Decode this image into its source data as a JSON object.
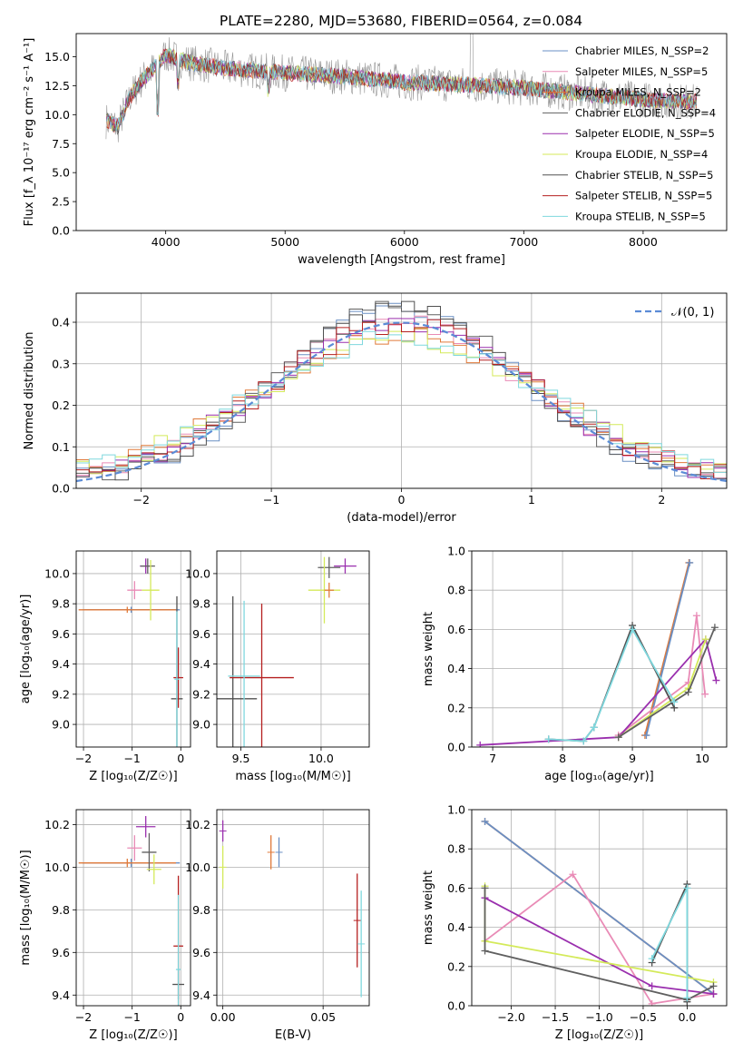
{
  "figure": {
    "title": "PLATE=2280, MJD=53680, FIBERID=0564, z=0.084"
  },
  "colors": {
    "chabrier_miles": "#6a8fc4",
    "salpeter_miles": "#e98bb6",
    "kroupa_miles": "#e07a3a",
    "chabrier_elodie": "#606060",
    "salpeter_elodie": "#9a2fae",
    "kroupa_elodie": "#d4ea5a",
    "chabrier_stelib": "#505050",
    "salpeter_stelib": "#b52020",
    "kroupa_stelib": "#7fd8de",
    "data": "#888888",
    "gaussian": "#5b8bd6"
  },
  "chart_data": [
    {
      "type": "line",
      "id": "spectrum",
      "title": "PLATE=2280, MJD=53680, FIBERID=0564, z=0.084",
      "xlabel": "wavelength [Angstrom, rest frame]",
      "ylabel": "Flux [f_λ 10⁻¹⁷ erg cm⁻² s⁻¹ A⁻¹]",
      "xlim": [
        3250,
        8700
      ],
      "ylim": [
        0,
        17
      ],
      "xticks": [
        4000,
        5000,
        6000,
        7000,
        8000
      ],
      "yticks": [
        0.0,
        2.5,
        5.0,
        7.5,
        10.0,
        12.5,
        15.0
      ],
      "grid": false,
      "legend": "top-right",
      "series": [
        {
          "name": "Chabrier MILES, N_SSP=2",
          "color": "chabrier_miles"
        },
        {
          "name": "Salpeter MILES, N_SSP=5",
          "color": "salpeter_miles"
        },
        {
          "name": "Kroupa MILES, N_SSP=2",
          "color": "kroupa_miles"
        },
        {
          "name": "Chabrier ELODIE, N_SSP=4",
          "color": "chabrier_elodie"
        },
        {
          "name": "Salpeter ELODIE, N_SSP=5",
          "color": "salpeter_elodie"
        },
        {
          "name": "Kroupa ELODIE, N_SSP=4",
          "color": "kroupa_elodie"
        },
        {
          "name": "Chabrier STELIB, N_SSP=5",
          "color": "chabrier_stelib"
        },
        {
          "name": "Salpeter STELIB, N_SSP=5",
          "color": "salpeter_stelib"
        },
        {
          "name": "Kroupa STELIB, N_SSP=5",
          "color": "kroupa_stelib"
        }
      ],
      "continuum": {
        "x": [
          3500,
          3600,
          3700,
          3800,
          3900,
          4000,
          4100,
          4200,
          4500,
          5000,
          5500,
          6000,
          6500,
          7000,
          7500,
          8000,
          8500
        ],
        "y": [
          9.5,
          9.0,
          11.5,
          13.0,
          14.0,
          15.2,
          14.8,
          14.5,
          14.0,
          13.6,
          13.3,
          12.8,
          12.6,
          12.3,
          11.8,
          11.3,
          11.1
        ]
      }
    },
    {
      "type": "line",
      "id": "residuals",
      "xlabel": "(data-model)/error",
      "ylabel": "Normed distribution",
      "xlim": [
        -2.5,
        2.5
      ],
      "ylim": [
        0,
        0.47
      ],
      "xticks": [
        -2,
        -1,
        0,
        1,
        2
      ],
      "yticks": [
        0.0,
        0.1,
        0.2,
        0.3,
        0.4
      ],
      "grid": true,
      "legend": "top-right",
      "gaussian_label": "𝒩(0, 1)",
      "bin_width": 0.1
    },
    {
      "type": "scatter",
      "id": "age_vs_Z",
      "xlabel": "Z [log₁₀(Z/Z☉)]",
      "ylabel": "age  [log₁₀(age/yr)]",
      "xlim": [
        -2.15,
        0.2
      ],
      "ylim": [
        8.85,
        10.15
      ],
      "xticks": [
        -2,
        -1,
        0
      ],
      "yticks": [
        9.0,
        9.2,
        9.4,
        9.6,
        9.8,
        10.0
      ],
      "grid": true,
      "points": [
        {
          "c": "chabrier_miles",
          "x": -1.02,
          "xerr": 1.0,
          "y": 9.76,
          "yerr": 0.02
        },
        {
          "c": "kroupa_miles",
          "x": -1.1,
          "xerr": 1.0,
          "y": 9.76,
          "yerr": 0.02
        },
        {
          "c": "salpeter_miles",
          "x": -0.95,
          "xerr": 0.15,
          "y": 9.89,
          "yerr": 0.06
        },
        {
          "c": "salpeter_elodie",
          "x": -0.72,
          "xerr": 0.12,
          "y": 10.05,
          "yerr": 0.05
        },
        {
          "c": "chabrier_elodie",
          "x": -0.68,
          "xerr": 0.15,
          "y": 10.05,
          "yerr": 0.05
        },
        {
          "c": "kroupa_elodie",
          "x": -0.62,
          "xerr": 0.18,
          "y": 9.89,
          "yerr": 0.2
        },
        {
          "c": "chabrier_stelib",
          "x": -0.08,
          "xerr": 0.12,
          "y": 9.17,
          "yerr": 0.68
        },
        {
          "c": "salpeter_stelib",
          "x": -0.05,
          "xerr": 0.1,
          "y": 9.31,
          "yerr": 0.2
        },
        {
          "c": "kroupa_stelib",
          "x": -0.08,
          "xerr": 0.05,
          "y": 9.3,
          "yerr": 0.45
        }
      ]
    },
    {
      "type": "scatter",
      "id": "age_vs_mass",
      "xlabel": "mass [log₁₀(M/M☉)]",
      "ylabel": "",
      "xlim": [
        9.35,
        10.3
      ],
      "ylim": [
        8.85,
        10.15
      ],
      "xticks": [
        9.5,
        10.0
      ],
      "yticks": [
        9.0,
        9.2,
        9.4,
        9.6,
        9.8,
        10.0
      ],
      "grid": true,
      "points": [
        {
          "c": "salpeter_elodie",
          "x": 10.15,
          "xerr": 0.07,
          "y": 10.05,
          "yerr": 0.05
        },
        {
          "c": "chabrier_elodie",
          "x": 10.05,
          "xerr": 0.07,
          "y": 10.04,
          "yerr": 0.07
        },
        {
          "c": "kroupa_elodie",
          "x": 10.02,
          "xerr": 0.1,
          "y": 9.89,
          "yerr": 0.22
        },
        {
          "c": "kroupa_miles",
          "x": 10.05,
          "xerr": 0.03,
          "y": 9.89,
          "yerr": 0.05
        },
        {
          "c": "chabrier_stelib",
          "x": 9.45,
          "xerr": 0.15,
          "y": 9.17,
          "yerr": 0.68
        },
        {
          "c": "salpeter_stelib",
          "x": 9.63,
          "xerr": 0.2,
          "y": 9.31,
          "yerr": 0.49
        },
        {
          "c": "kroupa_stelib",
          "x": 9.52,
          "xerr": 0.1,
          "y": 9.32,
          "yerr": 0.5
        }
      ]
    },
    {
      "type": "line",
      "id": "weight_vs_age",
      "xlabel": "age  [log₁₀(age/yr)]",
      "ylabel": "mass weight",
      "xlim": [
        6.7,
        10.35
      ],
      "ylim": [
        0,
        1.0
      ],
      "xticks": [
        7,
        8,
        9,
        10
      ],
      "yticks": [
        0.0,
        0.2,
        0.4,
        0.6,
        0.8,
        1.0
      ],
      "grid": true,
      "series": [
        {
          "c": "kroupa_miles",
          "x": [
            9.18,
            9.81
          ],
          "y": [
            0.06,
            0.94
          ]
        },
        {
          "c": "chabrier_miles",
          "x": [
            9.2,
            9.82
          ],
          "y": [
            0.06,
            0.94
          ]
        },
        {
          "c": "salpeter_miles",
          "x": [
            8.8,
            9.8,
            9.92,
            10.04
          ],
          "y": [
            0.06,
            0.33,
            0.67,
            0.27
          ]
        },
        {
          "c": "salpeter_elodie",
          "x": [
            6.82,
            8.8,
            10.05,
            10.2
          ],
          "y": [
            0.01,
            0.05,
            0.55,
            0.34
          ]
        },
        {
          "c": "kroupa_elodie",
          "x": [
            8.8,
            9.8,
            10.05
          ],
          "y": [
            0.05,
            0.3,
            0.55
          ]
        },
        {
          "c": "chabrier_elodie",
          "x": [
            8.8,
            9.8,
            10.18
          ],
          "y": [
            0.05,
            0.28,
            0.61
          ]
        },
        {
          "c": "chabrier_stelib",
          "x": [
            7.8,
            8.3,
            8.45,
            9.0,
            9.6
          ],
          "y": [
            0.04,
            0.03,
            0.1,
            0.62,
            0.2
          ]
        },
        {
          "c": "kroupa_stelib",
          "x": [
            7.8,
            8.3,
            8.45,
            9.0,
            9.6
          ],
          "y": [
            0.04,
            0.03,
            0.1,
            0.6,
            0.23
          ]
        }
      ]
    },
    {
      "type": "scatter",
      "id": "mass_vs_Z",
      "xlabel": "Z [log₁₀(Z/Z☉)]",
      "ylabel": "mass [log₁₀(M/M☉)]",
      "xlim": [
        -2.15,
        0.2
      ],
      "ylim": [
        9.35,
        10.27
      ],
      "xticks": [
        -2,
        -1,
        0
      ],
      "yticks": [
        9.4,
        9.6,
        9.8,
        10.0,
        10.2
      ],
      "grid": true,
      "points": [
        {
          "c": "chabrier_miles",
          "x": -1.02,
          "xerr": 1.0,
          "y": 10.02,
          "yerr": 0.02
        },
        {
          "c": "kroupa_miles",
          "x": -1.1,
          "xerr": 1.0,
          "y": 10.02,
          "yerr": 0.02
        },
        {
          "c": "salpeter_miles",
          "x": -0.95,
          "xerr": 0.15,
          "y": 10.09,
          "yerr": 0.06
        },
        {
          "c": "salpeter_elodie",
          "x": -0.72,
          "xerr": 0.2,
          "y": 10.19,
          "yerr": 0.05
        },
        {
          "c": "chabrier_elodie",
          "x": -0.65,
          "xerr": 0.15,
          "y": 10.07,
          "yerr": 0.09
        },
        {
          "c": "kroupa_elodie",
          "x": -0.55,
          "xerr": 0.15,
          "y": 9.99,
          "yerr": 0.07
        },
        {
          "c": "chabrier_stelib",
          "x": -0.05,
          "xerr": 0.12,
          "y": 9.45,
          "yerr": 0.07
        },
        {
          "c": "salpeter_stelib",
          "x": -0.05,
          "xerr": 0.1,
          "y": 9.63,
          "yerr": 0.33
        },
        {
          "c": "kroupa_stelib",
          "x": -0.05,
          "xerr": 0.05,
          "y": 9.52,
          "yerr": 0.35
        }
      ]
    },
    {
      "type": "scatter",
      "id": "mass_vs_ebv",
      "xlabel": "E(B-V)",
      "ylabel": "",
      "xlim": [
        -0.003,
        0.073
      ],
      "ylim": [
        9.35,
        10.27
      ],
      "xticks": [
        0.0,
        0.05
      ],
      "yticks": [
        9.4,
        9.6,
        9.8,
        10.0,
        10.2
      ],
      "grid": true,
      "points": [
        {
          "c": "salpeter_elodie",
          "x": 0.0,
          "xerr": 0.0,
          "y": 10.17,
          "yerr": 0.05
        },
        {
          "c": "kroupa_elodie",
          "x": 0.0,
          "xerr": 0.0,
          "y": 10.0,
          "yerr": 0.1
        },
        {
          "c": "kroupa_miles",
          "x": 0.024,
          "xerr": 0.0,
          "y": 10.07,
          "yerr": 0.08
        },
        {
          "c": "chabrier_miles",
          "x": 0.028,
          "xerr": 0.0,
          "y": 10.07,
          "yerr": 0.07
        },
        {
          "c": "salpeter_stelib",
          "x": 0.067,
          "xerr": 0.0,
          "y": 9.75,
          "yerr": 0.22
        },
        {
          "c": "kroupa_stelib",
          "x": 0.069,
          "xerr": 0.0,
          "y": 9.64,
          "yerr": 0.25
        }
      ]
    },
    {
      "type": "line",
      "id": "weight_vs_Z",
      "xlabel": "Z [log₁₀(Z/Z☉)]",
      "ylabel": "mass weight",
      "xlim": [
        -2.45,
        0.45
      ],
      "ylim": [
        0,
        1.0
      ],
      "xticks": [
        -2.0,
        -1.5,
        -1.0,
        -0.5,
        0.0
      ],
      "yticks": [
        0.0,
        0.2,
        0.4,
        0.6,
        0.8,
        1.0
      ],
      "grid": true,
      "series": [
        {
          "c": "kroupa_miles",
          "x": [
            -2.3,
            0.3
          ],
          "y": [
            0.94,
            0.06
          ]
        },
        {
          "c": "chabrier_miles",
          "x": [
            -2.3,
            0.3
          ],
          "y": [
            0.94,
            0.06
          ]
        },
        {
          "c": "salpeter_miles",
          "x": [
            -2.3,
            -1.3,
            -0.4,
            0.3
          ],
          "y": [
            0.33,
            0.67,
            0.01,
            0.06
          ]
        },
        {
          "c": "salpeter_elodie",
          "x": [
            -2.3,
            -0.4,
            0.3
          ],
          "y": [
            0.55,
            0.1,
            0.06
          ]
        },
        {
          "c": "kroupa_elodie",
          "x": [
            -2.3,
            -2.3,
            -2.3,
            0.3
          ],
          "y": [
            0.61,
            0.33,
            0.33,
            0.12
          ]
        },
        {
          "c": "chabrier_elodie",
          "x": [
            -2.3,
            -2.3,
            0.0,
            0.3
          ],
          "y": [
            0.6,
            0.28,
            0.03,
            0.1
          ]
        },
        {
          "c": "chabrier_stelib",
          "x": [
            -0.4,
            0.0,
            0.0
          ],
          "y": [
            0.22,
            0.62,
            0.02
          ]
        },
        {
          "c": "kroupa_stelib",
          "x": [
            -0.4,
            0.0,
            0.0
          ],
          "y": [
            0.24,
            0.6,
            0.04
          ]
        }
      ]
    }
  ]
}
